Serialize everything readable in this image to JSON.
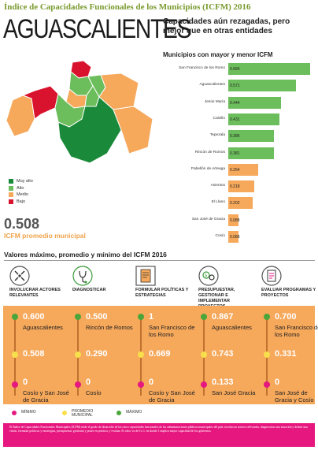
{
  "header": {
    "title": "Índice de Capacidades Funcionales de los Municipios (ICFM) 2016",
    "state": "AGUASCALIENTES",
    "subtitle": "Capacidades aún rezagadas, pero mejor que en otras entidades"
  },
  "map_legend": [
    {
      "label": "Muy alto",
      "color": "#1a8a3a"
    },
    {
      "label": "Alto",
      "color": "#6cbd5b"
    },
    {
      "label": "Medio",
      "color": "#f6a85b"
    },
    {
      "label": "Bajo",
      "color": "#d9132d"
    }
  ],
  "average": {
    "value": "0.508",
    "label": "ICFM  promedio municipal"
  },
  "chart_data": {
    "type": "bar",
    "title": "Municipios con mayor y menor ICFM",
    "categories": [
      "San Francisco de los Romo",
      "Aguascalientes",
      "Jesús María",
      "Calvillo",
      "Tepezalá",
      "Rincón de Romos",
      "Pabellón de Arteaga",
      "Asientos",
      "El Llano",
      "San José de Gracia",
      "Cosío"
    ],
    "values": [
      0.684,
      0.571,
      0.444,
      0.431,
      0.386,
      0.381,
      0.254,
      0.218,
      0.202,
      0.088,
      0.088
    ],
    "labels": [
      "0.684",
      "0.571",
      "0.444",
      "0.431",
      "0.386",
      "0.381",
      "0.254",
      "0.218",
      "0.202",
      "0.088",
      "0.088"
    ],
    "colors": [
      "#6cbd5b",
      "#6cbd5b",
      "#6cbd5b",
      "#6cbd5b",
      "#6cbd5b",
      "#6cbd5b",
      "#f6a85b",
      "#f6a85b",
      "#f6a85b",
      "#f6a85b",
      "#f6a85b"
    ]
  },
  "section": {
    "title": "Valores máximo, promedio y mínimo del ICFM 2016"
  },
  "dimensions": [
    {
      "label": "Involucrar actores relevantes",
      "icon": "arrows-in-icon",
      "max": "0.600",
      "max_name": "Aguascalientes",
      "avg": "0.508",
      "min": "0",
      "min_name": "Cosío y San José de Gracia"
    },
    {
      "label": "Diagnosticar",
      "icon": "stethoscope-icon",
      "max": "0.500",
      "max_name": "Rincón de Romos",
      "avg": "0.290",
      "min": "0",
      "min_name": "Cosío"
    },
    {
      "label": "Formular políticas y estrategias",
      "icon": "document-icon",
      "max": "1",
      "max_name": "San Francisco de los Romo",
      "avg": "0.669",
      "min": "0",
      "min_name": "Cosío y San José de Gracia"
    },
    {
      "label": "Presupuestar, gestionar e implementar proyectos",
      "icon": "money-gears-icon",
      "max": "0.867",
      "max_name": "Aguascalientes",
      "avg": "0.743",
      "min": "0.133",
      "min_name": "San José Gracia"
    },
    {
      "label": "Evaluar programas y proyectos",
      "icon": "checklist-icon",
      "max": "0.700",
      "max_name": "San Francisco de los Romo",
      "avg": "0.331",
      "min": "0",
      "min_name": "San José de Gracia y Cosío"
    }
  ],
  "marker_legend": [
    {
      "label": "Mínimo",
      "color": "#e6177f"
    },
    {
      "label": "Promedio municipal",
      "color": "#f7e04b"
    },
    {
      "label": "Máximo",
      "color": "#4aa63a"
    }
  ],
  "footnote": "El Índice de Capacidades Funcionales Municipales (ICFM) mide el grado de desarrollo de las cinco capacidades funcionales de las administraciones públicas municipales del país: involucrar actores relevantes, diagnosticar una situación y definir una visión, formular políticas y estrategias, presupuestar, gestionar y poner en práctica, y evaluar. El valor va de 0 a 1, en donde 1 implica mayor capacidad de los gobiernos."
}
